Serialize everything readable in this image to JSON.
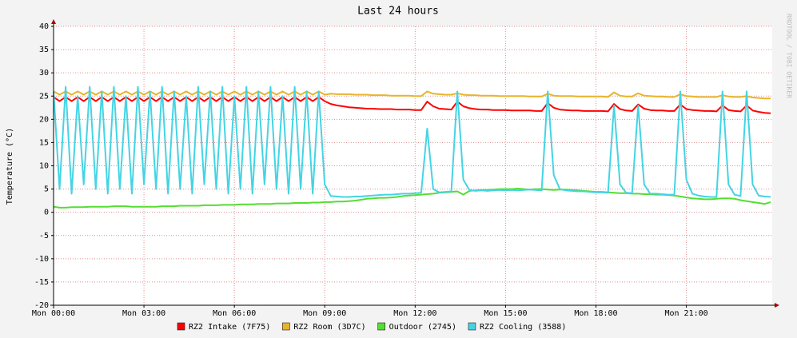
{
  "chart_data": {
    "type": "line",
    "title": "Last 24 hours",
    "ylabel": "Temperature (°C)",
    "watermark": "RRDTOOL / TOBI OETIKER",
    "x": [
      0,
      0.2,
      0.4,
      0.6,
      0.8,
      1,
      1.2,
      1.4,
      1.6,
      1.8,
      2,
      2.2,
      2.4,
      2.6,
      2.8,
      3,
      3.2,
      3.4,
      3.6,
      3.8,
      4,
      4.2,
      4.4,
      4.6,
      4.8,
      5,
      5.2,
      5.4,
      5.6,
      5.8,
      6,
      6.2,
      6.4,
      6.6,
      6.8,
      7,
      7.2,
      7.4,
      7.6,
      7.8,
      8,
      8.2,
      8.4,
      8.6,
      8.8,
      9,
      9.2,
      9.4,
      9.6,
      9.8,
      10,
      10.2,
      10.4,
      10.6,
      10.8,
      11,
      11.2,
      11.4,
      11.6,
      11.8,
      12,
      12.2,
      12.4,
      12.6,
      12.8,
      13,
      13.2,
      13.4,
      13.6,
      13.8,
      14,
      14.2,
      14.4,
      14.6,
      14.8,
      15,
      15.2,
      15.4,
      15.6,
      15.8,
      16,
      16.2,
      16.4,
      16.6,
      16.8,
      17,
      17.2,
      17.4,
      17.6,
      17.8,
      18,
      18.2,
      18.4,
      18.6,
      18.8,
      19,
      19.2,
      19.4,
      19.6,
      19.8,
      20,
      20.2,
      20.4,
      20.6,
      20.8,
      21,
      21.2,
      21.4,
      21.6,
      21.8,
      22,
      22.2,
      22.4,
      22.6,
      22.8,
      23,
      23.2,
      23.4,
      23.6,
      23.8
    ],
    "xlim": [
      0,
      23.85
    ],
    "xticks": [
      {
        "value": 0,
        "label": "Mon 00:00"
      },
      {
        "value": 3,
        "label": "Mon 03:00"
      },
      {
        "value": 6,
        "label": "Mon 06:00"
      },
      {
        "value": 9,
        "label": "Mon 09:00"
      },
      {
        "value": 12,
        "label": "Mon 12:00"
      },
      {
        "value": 15,
        "label": "Mon 15:00"
      },
      {
        "value": 18,
        "label": "Mon 18:00"
      },
      {
        "value": 21,
        "label": "Mon 21:00"
      }
    ],
    "ylim": [
      -20,
      40
    ],
    "yticks": [
      -20,
      -15,
      -10,
      -5,
      0,
      5,
      10,
      15,
      20,
      25,
      30,
      35,
      40
    ],
    "grid": true,
    "series": [
      {
        "name": "RZ2 Intake (7F75)",
        "color": "#ff0000",
        "values": [
          24.8,
          23.9,
          24.8,
          23.9,
          24.8,
          23.9,
          24.8,
          23.9,
          24.8,
          23.9,
          24.8,
          23.9,
          24.8,
          23.9,
          24.8,
          23.9,
          24.8,
          23.9,
          24.8,
          23.9,
          24.8,
          23.9,
          24.8,
          23.9,
          24.8,
          23.9,
          24.8,
          23.9,
          24.8,
          23.9,
          24.8,
          23.9,
          24.8,
          23.9,
          24.8,
          23.9,
          24.8,
          23.9,
          24.8,
          23.9,
          24.8,
          23.9,
          24.8,
          23.9,
          24.8,
          23.9,
          23.3,
          23,
          22.8,
          22.6,
          22.5,
          22.4,
          22.3,
          22.3,
          22.2,
          22.2,
          22.2,
          22.1,
          22.1,
          22.1,
          22,
          22,
          23.8,
          22.8,
          22.3,
          22.2,
          22.1,
          23.8,
          22.8,
          22.4,
          22.2,
          22.1,
          22.1,
          22,
          22,
          22,
          21.9,
          21.9,
          21.9,
          21.9,
          21.8,
          21.8,
          23.5,
          22.5,
          22.1,
          22,
          21.9,
          21.9,
          21.8,
          21.8,
          21.8,
          21.8,
          21.7,
          23.3,
          22.2,
          21.9,
          21.8,
          23.2,
          22.3,
          22,
          21.9,
          21.9,
          21.8,
          21.8,
          23.2,
          22.2,
          22,
          21.9,
          21.8,
          21.8,
          21.7,
          23,
          22,
          21.8,
          21.7,
          23,
          21.9,
          21.6,
          21.4,
          21.3
        ]
      },
      {
        "name": "RZ2 Room (3D7C)",
        "color": "#e8b42c",
        "values": [
          26,
          25.3,
          26,
          25.3,
          26,
          25.3,
          26,
          25.3,
          26,
          25.3,
          26,
          25.3,
          26,
          25.3,
          26,
          25.3,
          26,
          25.3,
          26,
          25.3,
          26,
          25.3,
          26,
          25.3,
          26,
          25.3,
          26,
          25.3,
          26,
          25.3,
          26,
          25.3,
          26,
          25.3,
          26,
          25.3,
          26,
          25.3,
          26,
          25.3,
          26,
          25.3,
          26,
          25.3,
          26,
          25.3,
          25.5,
          25.4,
          25.4,
          25.4,
          25.3,
          25.3,
          25.3,
          25.2,
          25.2,
          25.2,
          25.1,
          25.1,
          25.1,
          25.1,
          25,
          25,
          26,
          25.5,
          25.4,
          25.3,
          25.3,
          25.6,
          25.3,
          25.2,
          25.2,
          25.1,
          25.1,
          25.1,
          25,
          25,
          25,
          25,
          25,
          24.9,
          24.9,
          24.9,
          25.5,
          25.1,
          25,
          25,
          25,
          24.9,
          24.9,
          24.9,
          24.9,
          24.9,
          24.8,
          25.8,
          25.1,
          24.9,
          24.9,
          25.6,
          25.1,
          25,
          24.9,
          24.9,
          24.8,
          24.8,
          25.4,
          25,
          24.9,
          24.8,
          24.8,
          24.8,
          24.8,
          25.2,
          24.9,
          24.8,
          24.8,
          25,
          24.7,
          24.6,
          24.5,
          24.5
        ]
      },
      {
        "name": "Outdoor (2745)",
        "color": "#55dd33",
        "values": [
          1.2,
          1,
          1,
          1.1,
          1.1,
          1.1,
          1.2,
          1.2,
          1.2,
          1.2,
          1.3,
          1.3,
          1.3,
          1.2,
          1.2,
          1.2,
          1.2,
          1.2,
          1.3,
          1.3,
          1.3,
          1.4,
          1.4,
          1.4,
          1.4,
          1.5,
          1.5,
          1.5,
          1.6,
          1.6,
          1.6,
          1.7,
          1.7,
          1.7,
          1.8,
          1.8,
          1.8,
          1.9,
          1.9,
          1.9,
          2,
          2,
          2,
          2.1,
          2.1,
          2.2,
          2.2,
          2.3,
          2.3,
          2.4,
          2.5,
          2.7,
          2.9,
          3,
          3.1,
          3.1,
          3.2,
          3.3,
          3.5,
          3.6,
          3.7,
          3.8,
          3.9,
          4,
          4.2,
          4.3,
          4.4,
          4.5,
          3.8,
          4.6,
          4.7,
          4.8,
          4.8,
          4.9,
          5,
          5,
          5,
          5.1,
          5,
          4.9,
          5,
          5,
          4.9,
          4.8,
          4.9,
          4.9,
          4.8,
          4.7,
          4.6,
          4.5,
          4.4,
          4.4,
          4.3,
          4.2,
          4.1,
          4.1,
          4,
          4,
          3.9,
          3.9,
          3.8,
          3.8,
          3.7,
          3.6,
          3.4,
          3.2,
          3,
          2.9,
          2.8,
          2.8,
          2.9,
          3,
          3,
          2.9,
          2.6,
          2.4,
          2.2,
          2,
          1.8,
          2.2
        ]
      },
      {
        "name": "RZ2 Cooling (3588)",
        "color": "#44d4e4",
        "values": [
          26,
          5,
          27,
          4,
          25,
          6,
          27,
          5,
          26,
          4,
          27,
          5,
          25,
          4,
          27,
          6,
          26,
          5,
          27,
          4,
          26,
          5,
          25,
          4,
          27,
          6,
          26,
          5,
          27,
          4,
          25,
          5,
          27,
          4,
          26,
          6,
          27,
          5,
          25,
          4,
          27,
          5,
          26,
          4,
          26,
          6,
          3.5,
          3.4,
          3.3,
          3.3,
          3.4,
          3.4,
          3.5,
          3.6,
          3.7,
          3.8,
          3.8,
          3.9,
          4,
          4,
          4.1,
          4.2,
          18,
          5,
          4.3,
          4.4,
          4.5,
          26,
          7,
          4.8,
          4.6,
          4.7,
          4.6,
          4.7,
          4.8,
          4.7,
          4.8,
          4.7,
          4.8,
          4.9,
          4.8,
          4.7,
          26,
          8,
          5,
          4.7,
          4.6,
          4.5,
          4.5,
          4.4,
          4.3,
          4.3,
          4.2,
          23,
          6,
          4.2,
          4.1,
          23,
          6,
          4,
          4,
          3.9,
          3.8,
          3.8,
          26,
          7,
          4,
          3.6,
          3.4,
          3.3,
          3.3,
          26,
          6,
          3.8,
          3.5,
          26,
          6,
          3.6,
          3.4,
          3.3
        ]
      }
    ]
  }
}
